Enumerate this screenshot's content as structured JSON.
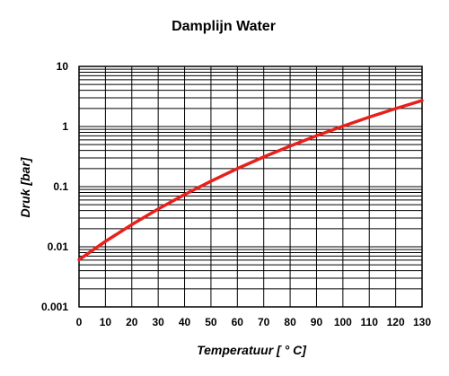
{
  "chart_data": {
    "type": "line",
    "title": "Damplijn Water",
    "xlabel": "Temperatuur [ ° C]",
    "ylabel": "Druk [bar]",
    "xlim": [
      0,
      130
    ],
    "ylim": [
      0.001,
      10
    ],
    "y_scale": "log",
    "grid": true,
    "x_ticks": [
      "0",
      "10",
      "20",
      "30",
      "40",
      "50",
      "60",
      "70",
      "80",
      "90",
      "100",
      "110",
      "120",
      "130"
    ],
    "y_ticks": [
      "10",
      "1",
      "0.1",
      "0.01",
      "0.001"
    ],
    "series": [
      {
        "color": "#e8201c",
        "x": [
          0,
          10,
          20,
          30,
          40,
          50,
          60,
          70,
          80,
          90,
          100,
          110,
          120,
          130
        ],
        "y": [
          0.0061,
          0.0123,
          0.0234,
          0.0425,
          0.0738,
          0.1235,
          0.1995,
          0.312,
          0.474,
          0.702,
          1.0135,
          1.433,
          1.987,
          2.7
        ]
      }
    ]
  }
}
